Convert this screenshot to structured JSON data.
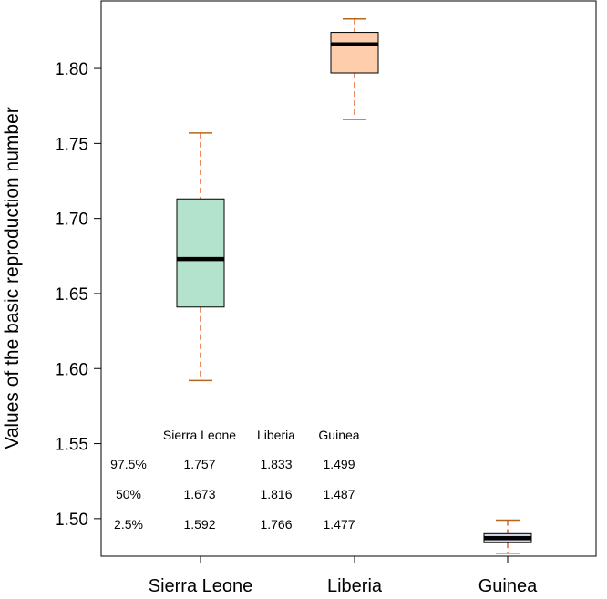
{
  "chart_data": {
    "type": "box",
    "ylabel": "Values of the basic reproduction number",
    "ylim": [
      1.475,
      1.845
    ],
    "yticks": [
      "1.50",
      "1.55",
      "1.60",
      "1.65",
      "1.70",
      "1.75",
      "1.80"
    ],
    "categories": [
      "Sierra Leone",
      "Liberia",
      "Guinea"
    ],
    "boxes": [
      {
        "category": "Sierra Leone",
        "whisker_low": 1.592,
        "q1": 1.641,
        "median": 1.673,
        "q3": 1.713,
        "whisker_high": 1.757,
        "color": "#b3e2cd"
      },
      {
        "category": "Liberia",
        "whisker_low": 1.766,
        "q1": 1.797,
        "median": 1.816,
        "q3": 1.824,
        "whisker_high": 1.833,
        "color": "#fdcdac"
      },
      {
        "category": "Guinea",
        "whisker_low": 1.477,
        "q1": 1.484,
        "median": 1.487,
        "q3": 1.49,
        "whisker_high": 1.499,
        "color": "#cbd5e8"
      }
    ],
    "whisker_color": "#e8632b",
    "cap_color": "#b5651d",
    "grid": false,
    "table": {
      "headers": [
        "Sierra Leone",
        "Liberia",
        "Guinea"
      ],
      "rows": [
        {
          "label": "97.5%",
          "values": [
            "1.757",
            "1.833",
            "1.499"
          ]
        },
        {
          "label": "50%",
          "values": [
            "1.673",
            "1.816",
            "1.487"
          ]
        },
        {
          "label": "2.5%",
          "values": [
            "1.592",
            "1.766",
            "1.477"
          ]
        }
      ]
    }
  }
}
